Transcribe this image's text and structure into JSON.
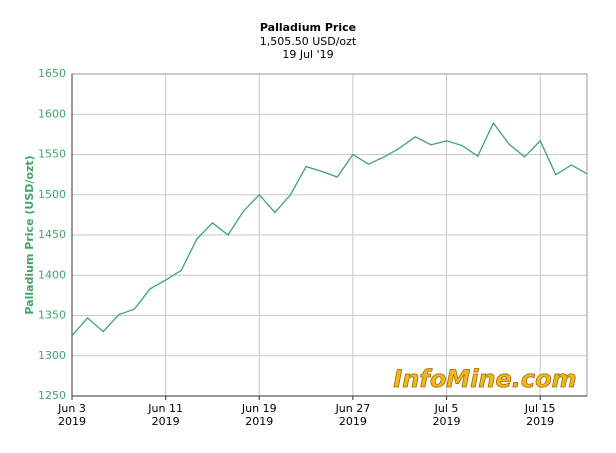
{
  "chart_data": {
    "type": "line",
    "title": "Palladium Price",
    "subtitle": [
      "1,505.50 USD/ozt",
      "19 Jul '19"
    ],
    "y_label": "Palladium Price (USD/ozt)",
    "watermark": "InfoMine.com",
    "categories": [
      "Jun 3\n2019",
      null,
      null,
      null,
      null,
      null,
      "Jun 11\n2019",
      null,
      null,
      null,
      null,
      null,
      "Jun 19\n2019",
      null,
      null,
      null,
      null,
      null,
      "Jun 27\n2019",
      null,
      null,
      null,
      null,
      null,
      "Jul 5\n2019",
      null,
      null,
      null,
      null,
      null,
      "Jul 15\n2019",
      null,
      null,
      null
    ],
    "series": [
      {
        "name": "Palladium",
        "color": "#3fa66a",
        "values": [
          1325,
          1347,
          1330,
          1351,
          1358,
          1383,
          1394,
          1406,
          1445,
          1465,
          1450,
          1480,
          1500,
          1478,
          1500,
          1535,
          1529,
          1522,
          1550,
          1538,
          1547,
          1558,
          1572,
          1562,
          1567,
          1561,
          1548,
          1589,
          1563,
          1547,
          1567,
          1525,
          1537,
          1526
        ]
      }
    ],
    "ylim": [
      1250,
      1650
    ],
    "yticks": [
      1250,
      1300,
      1350,
      1400,
      1450,
      1500,
      1550,
      1600,
      1650
    ],
    "grid": true
  }
}
